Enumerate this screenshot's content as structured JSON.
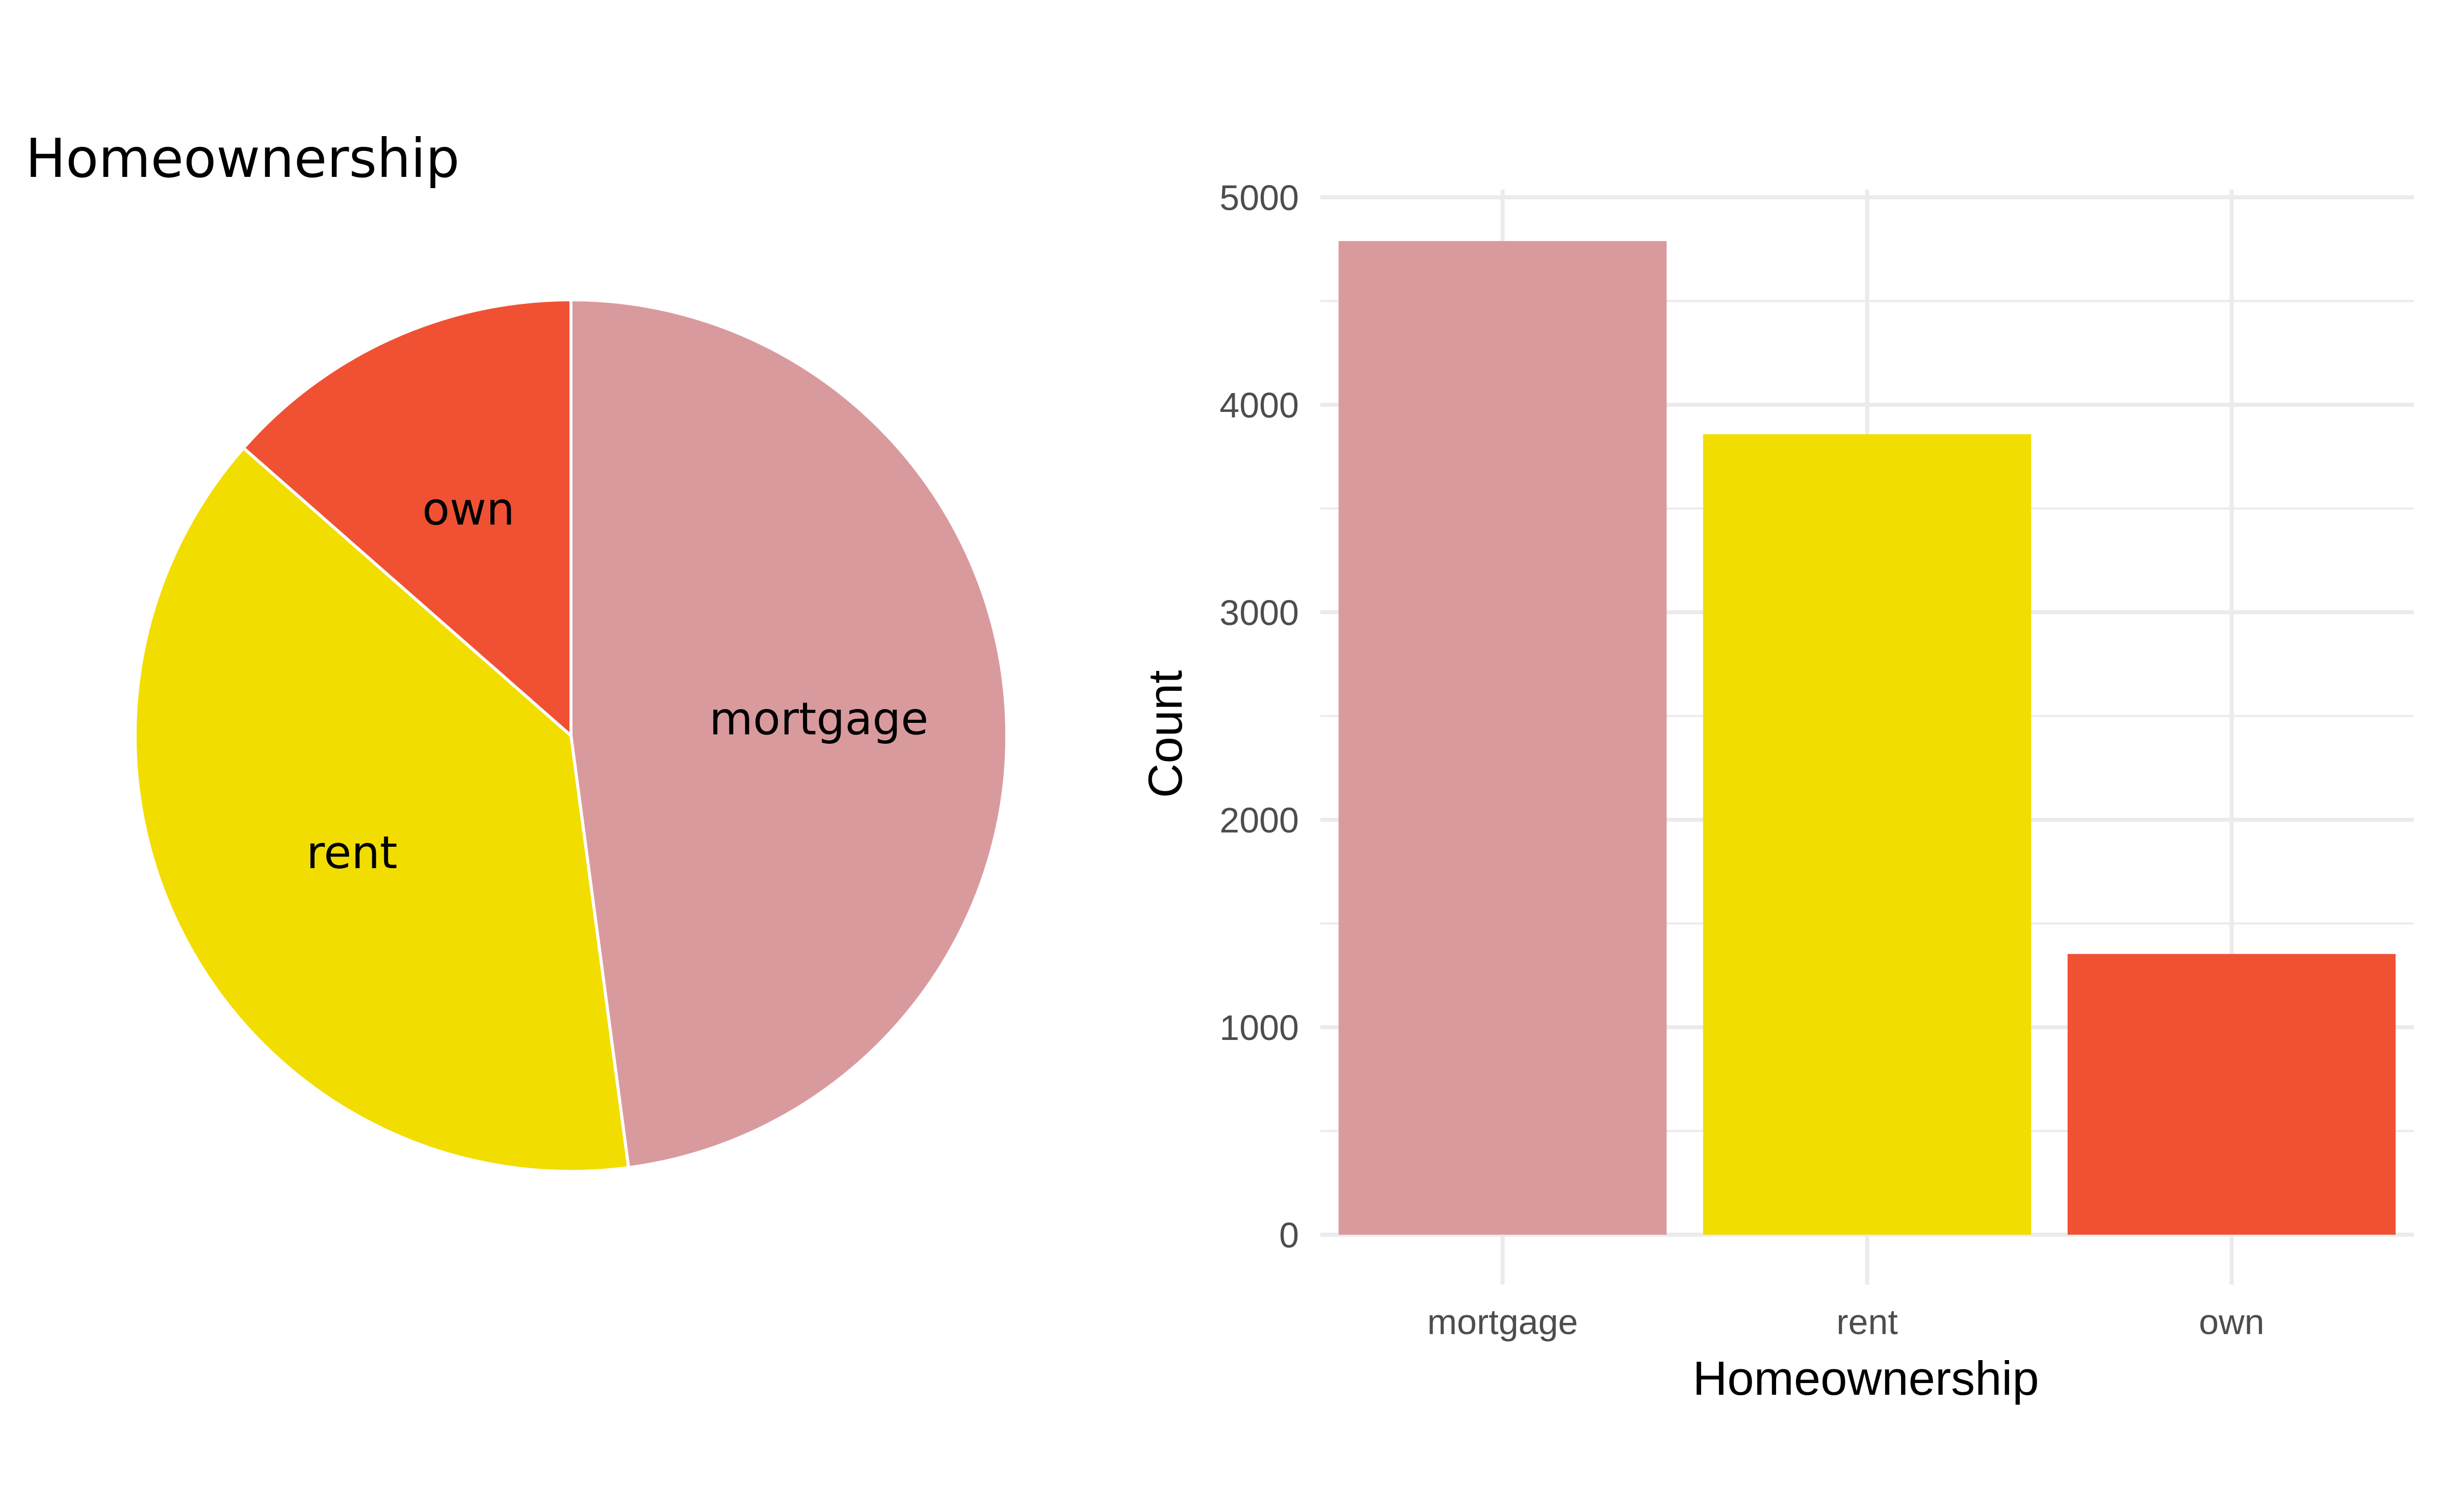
{
  "chart_data": [
    {
      "type": "pie",
      "title": "Homeownership",
      "categories": [
        "mortgage",
        "rent",
        "own"
      ],
      "values": [
        4789,
        3858,
        1353
      ],
      "colors": [
        "#D99A9E",
        "#F2DD00",
        "#F05133"
      ],
      "slice_border_color": "#FFFFFF",
      "start": "12 o'clock",
      "direction": "clockwise"
    },
    {
      "type": "bar",
      "categories": [
        "mortgage",
        "rent",
        "own"
      ],
      "values": [
        4789,
        3858,
        1353
      ],
      "colors": [
        "#D99A9E",
        "#F2DD00",
        "#F05133"
      ],
      "xlabel": "Homeownership",
      "ylabel": "Count",
      "ylim": [
        0,
        5000
      ],
      "yticks": [
        0,
        1000,
        2000,
        3000,
        4000,
        5000
      ],
      "ytick_labels": [
        "0",
        "1000",
        "2000",
        "3000",
        "4000",
        "5000"
      ],
      "grid": true,
      "grid_color": "#EBEBEB",
      "legend": "none"
    }
  ]
}
